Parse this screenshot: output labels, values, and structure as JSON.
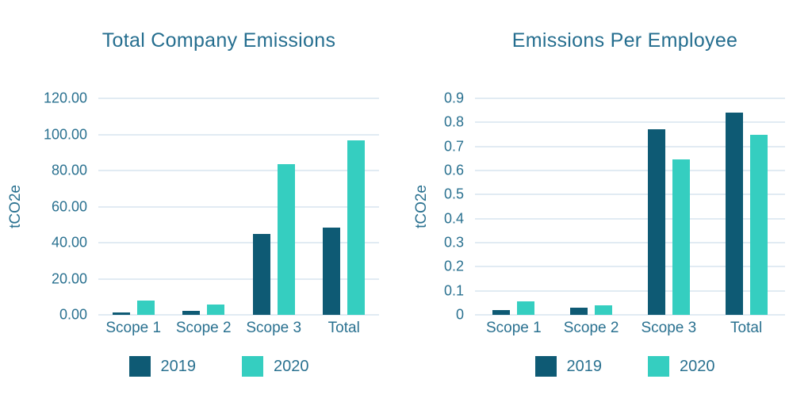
{
  "colors": {
    "series": [
      "#0e5a74",
      "#35cec0"
    ],
    "text": "#2a7190",
    "title": "#256e8f",
    "grid": "#e1ebf3",
    "background": "#ffffff"
  },
  "chart_data": [
    {
      "type": "bar",
      "title": "Total Company Emissions",
      "xlabel": "",
      "ylabel": "tCO2e",
      "categories": [
        "Scope 1",
        "Scope 2",
        "Scope 3",
        "Total"
      ],
      "series": [
        {
          "name": "2019",
          "color": "#0e5a74",
          "values": [
            1.2,
            2.0,
            45.0,
            48.3
          ]
        },
        {
          "name": "2020",
          "color": "#35cec0",
          "values": [
            7.8,
            5.6,
            83.5,
            96.6
          ]
        }
      ],
      "ylim": [
        0,
        120
      ],
      "yticks": [
        "120.00",
        "100.00",
        "80.00",
        "60.00",
        "40.00",
        "20.00",
        "0.00"
      ],
      "grid": true,
      "legend_position": "bottom"
    },
    {
      "type": "bar",
      "title": "Emissions Per Employee",
      "xlabel": "",
      "ylabel": "tCO2e",
      "categories": [
        "Scope 1",
        "Scope 2",
        "Scope 3",
        "Total"
      ],
      "series": [
        {
          "name": "2019",
          "color": "#0e5a74",
          "values": [
            0.02,
            0.03,
            0.77,
            0.84
          ]
        },
        {
          "name": "2020",
          "color": "#35cec0",
          "values": [
            0.055,
            0.04,
            0.645,
            0.75
          ]
        }
      ],
      "ylim": [
        0,
        0.9
      ],
      "yticks": [
        "0.9",
        "0.8",
        "0.7",
        "0.6",
        "0.5",
        "0.4",
        "0.3",
        "0.2",
        "0.1",
        "0"
      ],
      "grid": true,
      "legend_position": "bottom"
    }
  ]
}
